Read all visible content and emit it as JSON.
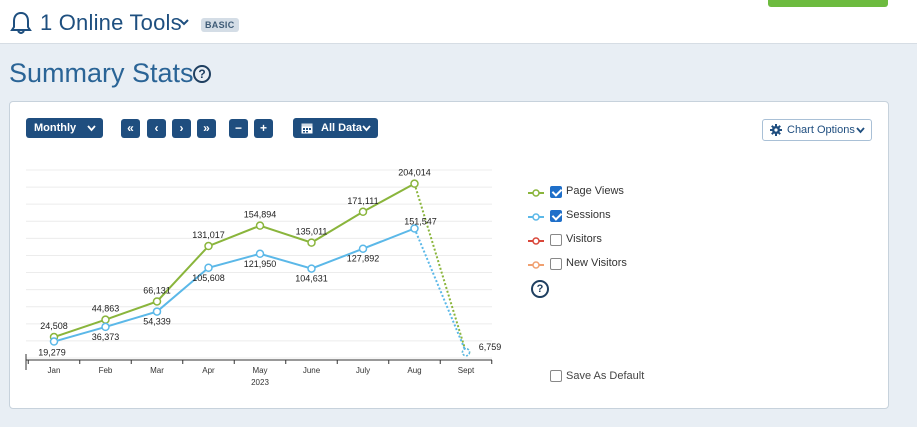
{
  "header": {
    "app_title": "1 Online Tools",
    "plan_badge": "BASIC"
  },
  "page": {
    "title": "Summary Stats"
  },
  "toolbar": {
    "period_label": "Monthly",
    "nav_first": "«",
    "nav_prev": "‹",
    "nav_next": "›",
    "nav_last": "»",
    "zoom_out": "−",
    "zoom_in": "+",
    "range_label": "All Data",
    "chart_options_label": "Chart Options"
  },
  "legend": [
    {
      "label": "Page Views",
      "checked": true,
      "color": "#8ab53c"
    },
    {
      "label": "Sessions",
      "checked": true,
      "color": "#5bb8e8"
    },
    {
      "label": "Visitors",
      "checked": false,
      "color": "#d9473a"
    },
    {
      "label": "New Visitors",
      "checked": false,
      "color": "#f0a070"
    }
  ],
  "help_icon_glyph": "?",
  "save_default_label": "Save As Default",
  "chart_data": {
    "type": "line",
    "categories": [
      "Jan",
      "Feb",
      "Mar",
      "Apr",
      "May",
      "June",
      "July",
      "Aug",
      "Sept"
    ],
    "year_label": "2023",
    "series": [
      {
        "name": "Page Views",
        "color": "#8ab53c",
        "values": [
          24508,
          44863,
          66131,
          131017,
          154894,
          135011,
          171111,
          204014,
          6759
        ],
        "labels": [
          "24,508",
          "44,863",
          "66,131",
          "131,017",
          "154,894",
          "135,011",
          "171,111",
          "204,014",
          ""
        ]
      },
      {
        "name": "Sessions",
        "color": "#5bb8e8",
        "values": [
          19279,
          36373,
          54339,
          105608,
          121950,
          104631,
          127892,
          151547,
          6759
        ],
        "labels": [
          "19,279",
          "36,373",
          "54,339",
          "105,608",
          "121,950",
          "104,631",
          "127,892",
          "151,547",
          "6,759"
        ]
      }
    ],
    "partial_last_point": true,
    "ylim": [
      0,
      220000
    ],
    "grid": true
  }
}
